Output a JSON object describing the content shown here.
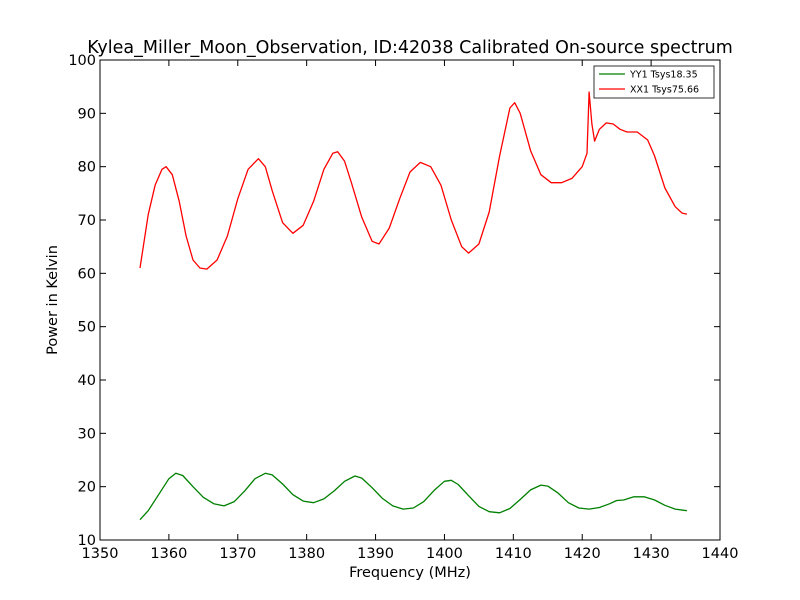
{
  "chart_data": {
    "type": "line",
    "title": "Kylea_Miller_Moon_Observation, ID:42038 Calibrated On-source spectrum",
    "xlabel": "Frequency (MHz)",
    "ylabel": "Power in Kelvin",
    "xlim": [
      1350,
      1440
    ],
    "ylim": [
      10,
      100
    ],
    "xticks": [
      1350,
      1360,
      1370,
      1380,
      1390,
      1400,
      1410,
      1420,
      1430,
      1440
    ],
    "yticks": [
      10,
      20,
      30,
      40,
      50,
      60,
      70,
      80,
      90,
      100
    ],
    "xtick_labels": [
      "1350",
      "1360",
      "1370",
      "1380",
      "1390",
      "1400",
      "1410",
      "1420",
      "1430",
      "1440"
    ],
    "ytick_labels": [
      "10",
      "20",
      "30",
      "40",
      "50",
      "60",
      "70",
      "80",
      "90",
      "100"
    ],
    "grid": false,
    "legend_position": "top-right",
    "series": [
      {
        "name": "YY1 Tsys18.35",
        "color": "#008000",
        "x": [
          1355.8,
          1357,
          1358.5,
          1360,
          1361,
          1362,
          1363.5,
          1365,
          1366.5,
          1368,
          1369.5,
          1371,
          1372.5,
          1374,
          1375,
          1376.5,
          1378,
          1379.5,
          1381,
          1382.5,
          1384,
          1385.5,
          1387,
          1388,
          1389.5,
          1391,
          1392.5,
          1394,
          1395.5,
          1397,
          1398.5,
          1400,
          1401,
          1402,
          1403.5,
          1405,
          1406.5,
          1408,
          1409.5,
          1411,
          1412.5,
          1414,
          1415,
          1416.5,
          1418,
          1419.5,
          1421,
          1422.5,
          1424,
          1425,
          1426,
          1427.5,
          1429,
          1430.5,
          1432,
          1433.5,
          1435.2
        ],
        "y": [
          13.8,
          15.5,
          18.5,
          21.5,
          22.5,
          22.1,
          20.0,
          18.0,
          16.8,
          16.4,
          17.2,
          19.2,
          21.5,
          22.5,
          22.2,
          20.5,
          18.5,
          17.3,
          17.0,
          17.7,
          19.2,
          21.0,
          22.0,
          21.6,
          19.8,
          17.8,
          16.4,
          15.8,
          16.0,
          17.2,
          19.3,
          21.0,
          21.2,
          20.4,
          18.3,
          16.3,
          15.3,
          15.1,
          15.9,
          17.6,
          19.4,
          20.3,
          20.1,
          18.8,
          17.0,
          16.0,
          15.8,
          16.1,
          16.8,
          17.4,
          17.5,
          18.1,
          18.1,
          17.5,
          16.5,
          15.8,
          15.5
        ]
      },
      {
        "name": "XX1 Tsys75.66",
        "color": "#ff0000",
        "x": [
          1355.8,
          1357,
          1358,
          1359,
          1359.6,
          1360.5,
          1361.5,
          1362.5,
          1363.5,
          1364.5,
          1365.5,
          1367,
          1368.5,
          1370,
          1371.5,
          1373,
          1374,
          1375,
          1376.5,
          1378,
          1379.5,
          1381,
          1382.5,
          1383.8,
          1384.5,
          1385.5,
          1386.5,
          1388,
          1389.5,
          1390.5,
          1392,
          1393.5,
          1395,
          1396.5,
          1398,
          1399.5,
          1401,
          1402.5,
          1403.5,
          1405,
          1406.5,
          1408,
          1409.5,
          1410.2,
          1411,
          1412.5,
          1414,
          1415.5,
          1417,
          1418.5,
          1420,
          1420.7,
          1421,
          1421.4,
          1421.8,
          1422.5,
          1423.5,
          1424.5,
          1425.5,
          1426.5,
          1428,
          1429.5,
          1430.5,
          1432,
          1433.5,
          1434.5,
          1435.2
        ],
        "y": [
          61.0,
          71.0,
          76.5,
          79.5,
          80.0,
          78.5,
          73.5,
          67.0,
          62.5,
          61.0,
          60.8,
          62.5,
          67.0,
          74.0,
          79.5,
          81.5,
          80.0,
          75.5,
          69.5,
          67.5,
          69.0,
          73.5,
          79.5,
          82.5,
          82.8,
          81.0,
          77.0,
          70.5,
          66.0,
          65.5,
          68.5,
          74.0,
          79.0,
          80.8,
          80.0,
          76.5,
          70.0,
          65.0,
          63.8,
          65.5,
          71.5,
          82.0,
          91.0,
          92.0,
          90.0,
          83.0,
          78.5,
          77.0,
          77.0,
          77.8,
          80.0,
          82.5,
          94.0,
          88.0,
          84.8,
          87.0,
          88.2,
          88.0,
          87.0,
          86.5,
          86.5,
          85.0,
          82.0,
          76.0,
          72.5,
          71.3,
          71.1
        ]
      }
    ]
  }
}
